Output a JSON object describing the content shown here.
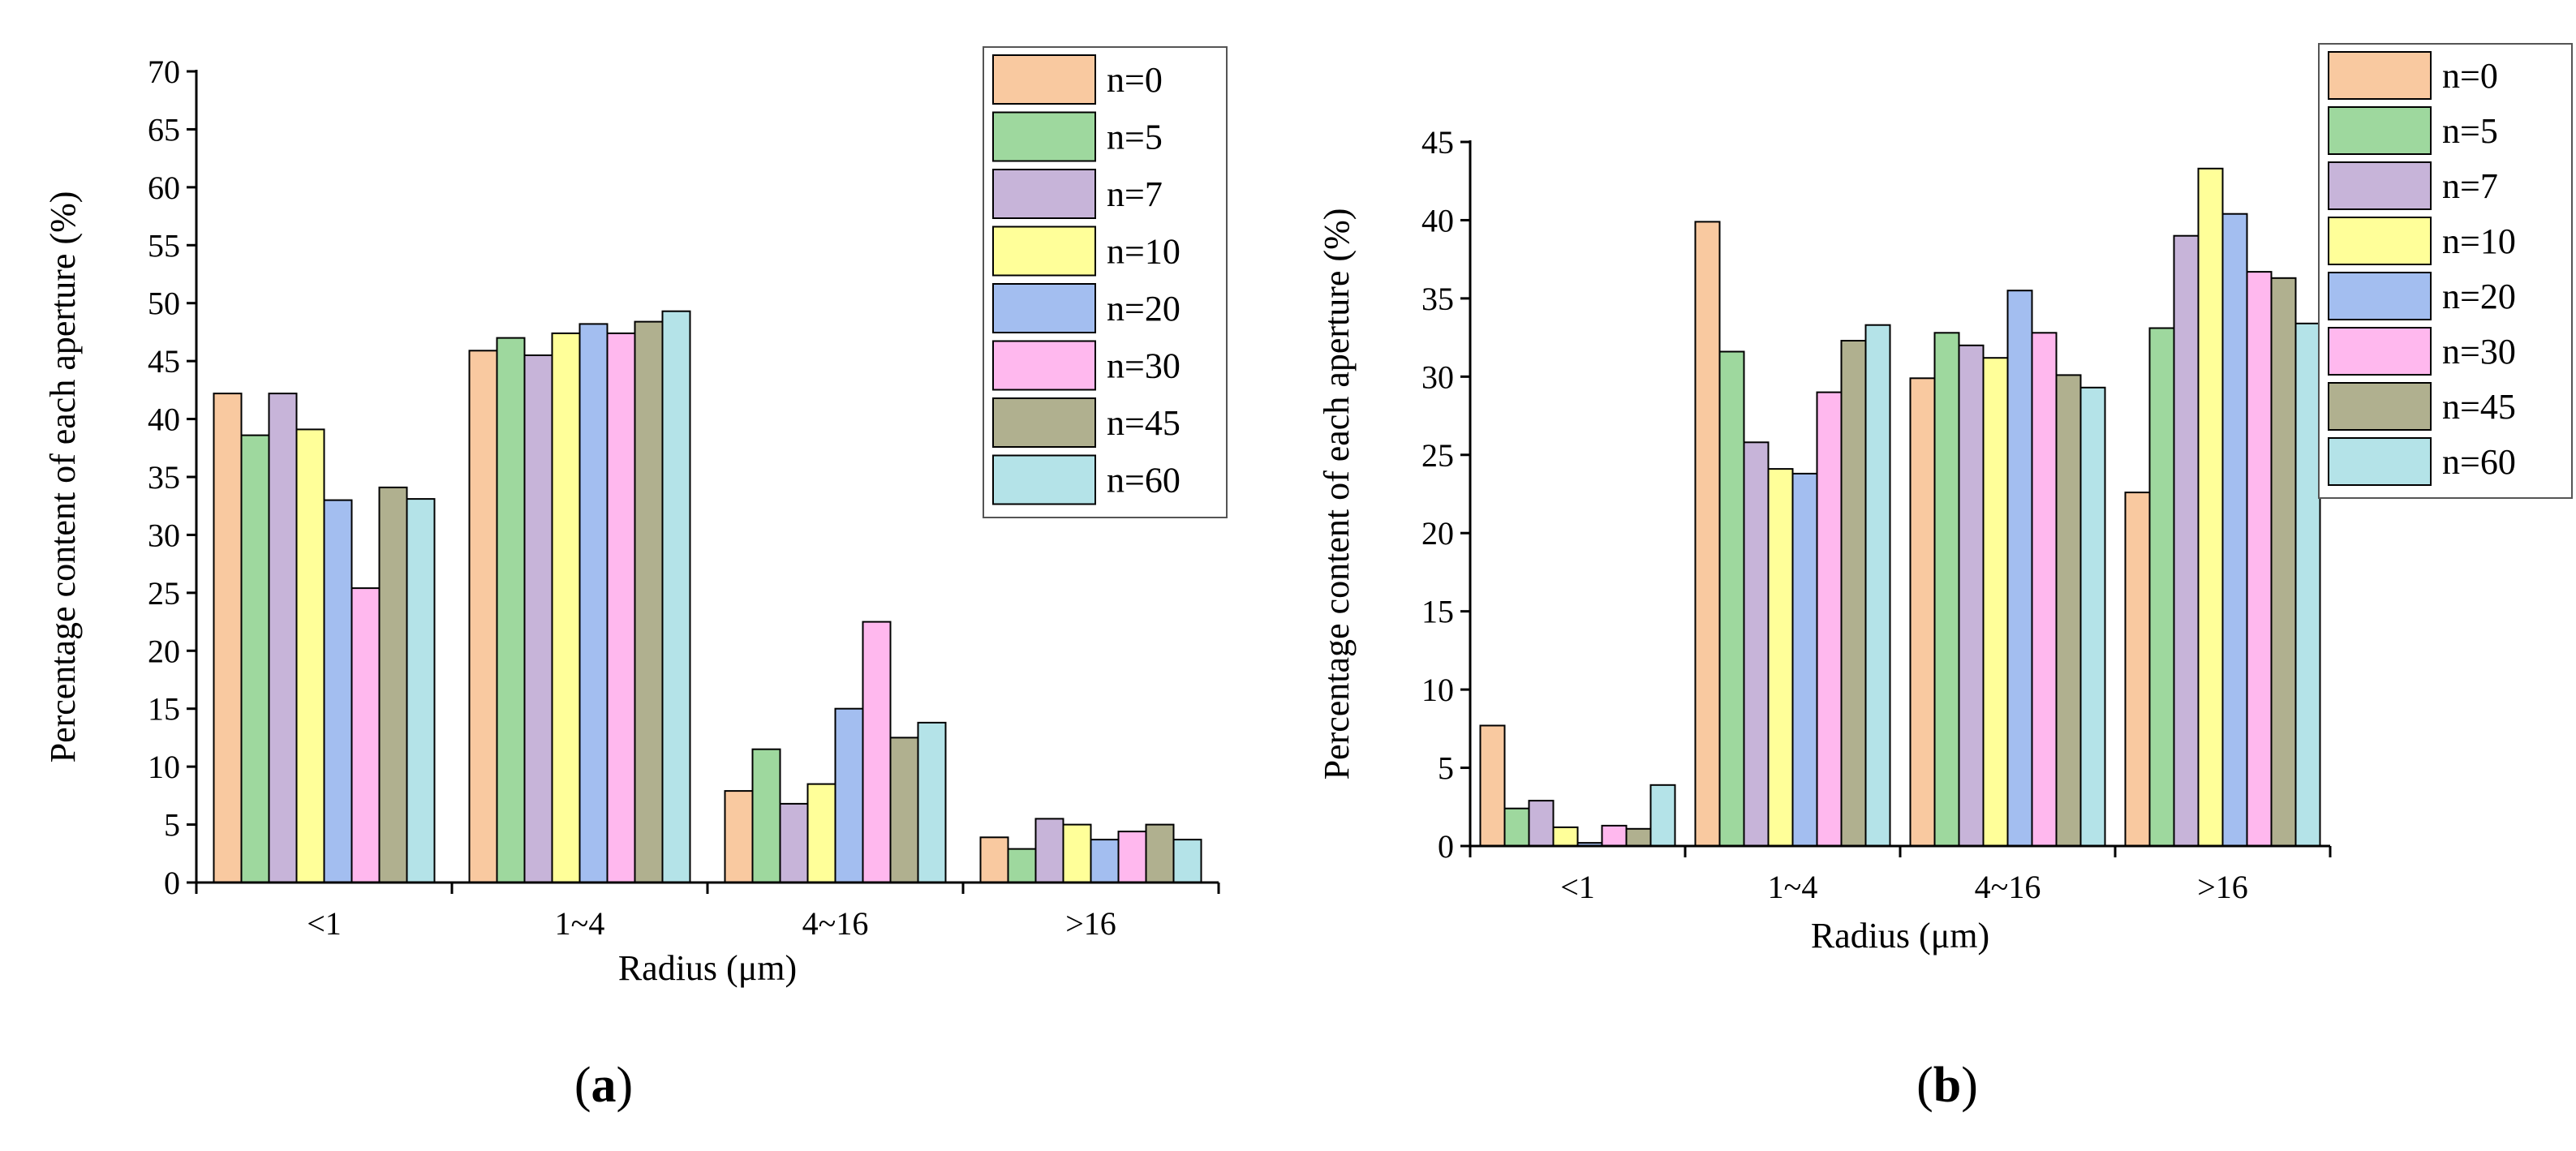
{
  "chart_data": [
    {
      "type": "bar",
      "panel_label": "a",
      "title": "",
      "xlabel": "Radius (μm)",
      "ylabel": "Percentage content of each aperture (%)",
      "ylim": [
        0,
        70
      ],
      "yticks": [
        0,
        5,
        10,
        15,
        20,
        25,
        30,
        35,
        40,
        45,
        50,
        55,
        60,
        65,
        70
      ],
      "categories": [
        "<1",
        "1~4",
        "4~16",
        ">16"
      ],
      "legend_position": "top-right",
      "series": [
        {
          "name": "n=0",
          "color": "#f9c9a0",
          "values": [
            42.2,
            45.9,
            7.9,
            3.9
          ]
        },
        {
          "name": "n=5",
          "color": "#9ed89e",
          "values": [
            38.6,
            47.0,
            11.5,
            2.9
          ]
        },
        {
          "name": "n=7",
          "color": "#c7b4d9",
          "values": [
            42.2,
            45.5,
            6.8,
            5.5
          ]
        },
        {
          "name": "n=10",
          "color": "#ffff99",
          "values": [
            39.1,
            47.4,
            8.5,
            5.0
          ]
        },
        {
          "name": "n=20",
          "color": "#a3bef0",
          "values": [
            33.0,
            48.2,
            15.0,
            3.7
          ]
        },
        {
          "name": "n=30",
          "color": "#ffb8ee",
          "values": [
            25.4,
            47.4,
            22.5,
            4.4
          ]
        },
        {
          "name": "n=45",
          "color": "#b0b08f",
          "values": [
            34.1,
            48.4,
            12.5,
            5.0
          ]
        },
        {
          "name": "n=60",
          "color": "#b4e3e8",
          "values": [
            33.1,
            49.3,
            13.8,
            3.7
          ]
        }
      ]
    },
    {
      "type": "bar",
      "panel_label": "b",
      "title": "",
      "xlabel": "Radius (μm)",
      "ylabel": "Percentage content of each aperture (%)",
      "ylim": [
        0,
        45
      ],
      "yticks": [
        0,
        5,
        10,
        15,
        20,
        25,
        30,
        35,
        40,
        45
      ],
      "categories": [
        "<1",
        "1~4",
        "4~16",
        ">16"
      ],
      "legend_position": "top-right",
      "series": [
        {
          "name": "n=0",
          "color": "#f9c9a0",
          "values": [
            7.7,
            39.9,
            29.9,
            22.6
          ]
        },
        {
          "name": "n=5",
          "color": "#9ed89e",
          "values": [
            2.4,
            31.6,
            32.8,
            33.1
          ]
        },
        {
          "name": "n=7",
          "color": "#c7b4d9",
          "values": [
            2.9,
            25.8,
            32.0,
            39.0
          ]
        },
        {
          "name": "n=10",
          "color": "#ffff99",
          "values": [
            1.2,
            24.1,
            31.2,
            43.3
          ]
        },
        {
          "name": "n=20",
          "color": "#a3bef0",
          "values": [
            0.2,
            23.8,
            35.5,
            40.4
          ]
        },
        {
          "name": "n=30",
          "color": "#ffb8ee",
          "values": [
            1.3,
            29.0,
            32.8,
            36.7
          ]
        },
        {
          "name": "n=45",
          "color": "#b0b08f",
          "values": [
            1.1,
            32.3,
            30.1,
            36.3
          ]
        },
        {
          "name": "n=60",
          "color": "#b4e3e8",
          "values": [
            3.9,
            33.3,
            29.3,
            33.4
          ]
        }
      ]
    }
  ]
}
